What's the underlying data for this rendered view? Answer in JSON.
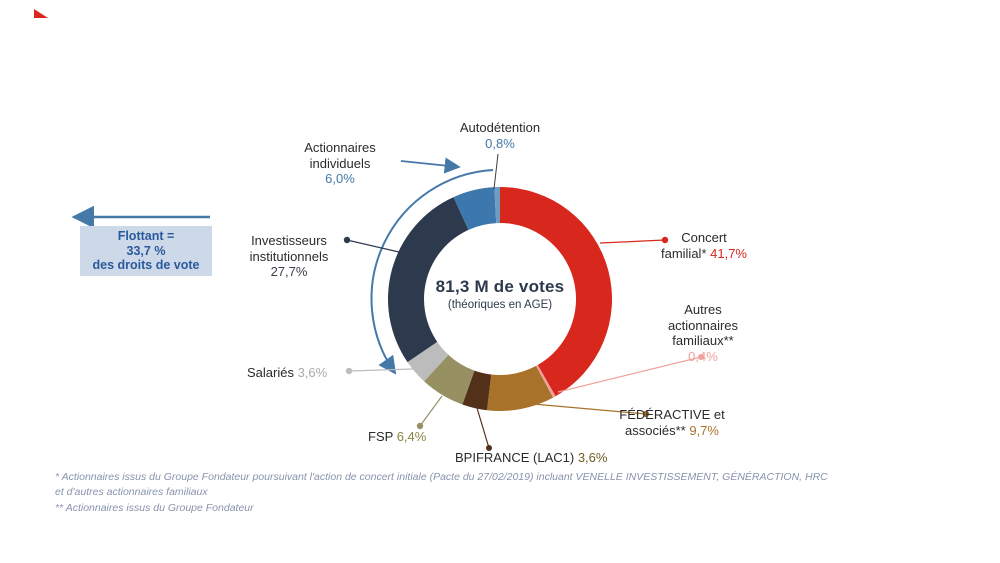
{
  "chart_data": {
    "type": "pie",
    "variant": "donut",
    "title": "81,3 M de votes",
    "subtitle": "(théoriques en AGE)",
    "direction": "clockwise",
    "start_angle_deg": 0,
    "unit": "%",
    "segments": [
      {
        "label": "Concert familial*",
        "label_lines": [
          "Concert",
          "familial*"
        ],
        "value": 41.7,
        "display": "41,7%",
        "color": "#d8271d"
      },
      {
        "label": "Autres actionnaires familiaux**",
        "label_lines": [
          "Autres",
          "actionnaires",
          "familiaux**"
        ],
        "value": 0.4,
        "display": "0,4%",
        "color": "#f0a29c"
      },
      {
        "label": "FÉDÉRACTIVE et associés**",
        "label_lines": [
          "FÉDÉRACTIVE et",
          "associés**"
        ],
        "value": 9.7,
        "display": "9,7%",
        "color": "#a8722b"
      },
      {
        "label": "BPIFRANCE (LAC1)",
        "value": 3.6,
        "display": "3,6%",
        "color": "#53301a",
        "value_color": "#6e5e22"
      },
      {
        "label": "FSP",
        "value": 6.4,
        "display": "6,4%",
        "color": "#979062",
        "value_color": "#8a8444"
      },
      {
        "label": "Salariés",
        "value": 3.6,
        "display": "3,6%",
        "color": "#bcbcbc",
        "value_color": "#ababab"
      },
      {
        "label": "Investisseurs institutionnels",
        "label_lines": [
          "Investisseurs",
          "institutionnels"
        ],
        "value": 27.7,
        "display": "27,7%",
        "color": "#2d3a4d",
        "value_color": "#3a3f48"
      },
      {
        "label": "Actionnaires individuels",
        "label_lines": [
          "Actionnaires",
          "individuels"
        ],
        "value": 6.0,
        "display": "6,0%",
        "color": "#3c78ad",
        "value_color": "#4579a8"
      },
      {
        "label": "Autodétention",
        "value": 0.8,
        "display": "0,8%",
        "color": "#6f9cc4",
        "value_color": "#4579a8"
      }
    ]
  },
  "flottant": {
    "line1": "Flottant =",
    "line2": "33,7 %",
    "line3": "des droits de vote",
    "box_color": "#cdd9e9",
    "text_color": "#2a5a9c",
    "arrow_color": "#4579a8"
  },
  "footnotes": {
    "note1_line1": "* Actionnaires issus du Groupe Fondateur poursuivant l'action de concert initiale (Pacte du 27/02/2019) incluant VENELLE INVESTISSEMENT, GÉNÉRACTION, HRC",
    "note1_line2": "et d'autres actionnaires familiaux",
    "note2": "** Actionnaires issus du Groupe Fondateur"
  },
  "logo": {
    "color": "#d8271d"
  }
}
